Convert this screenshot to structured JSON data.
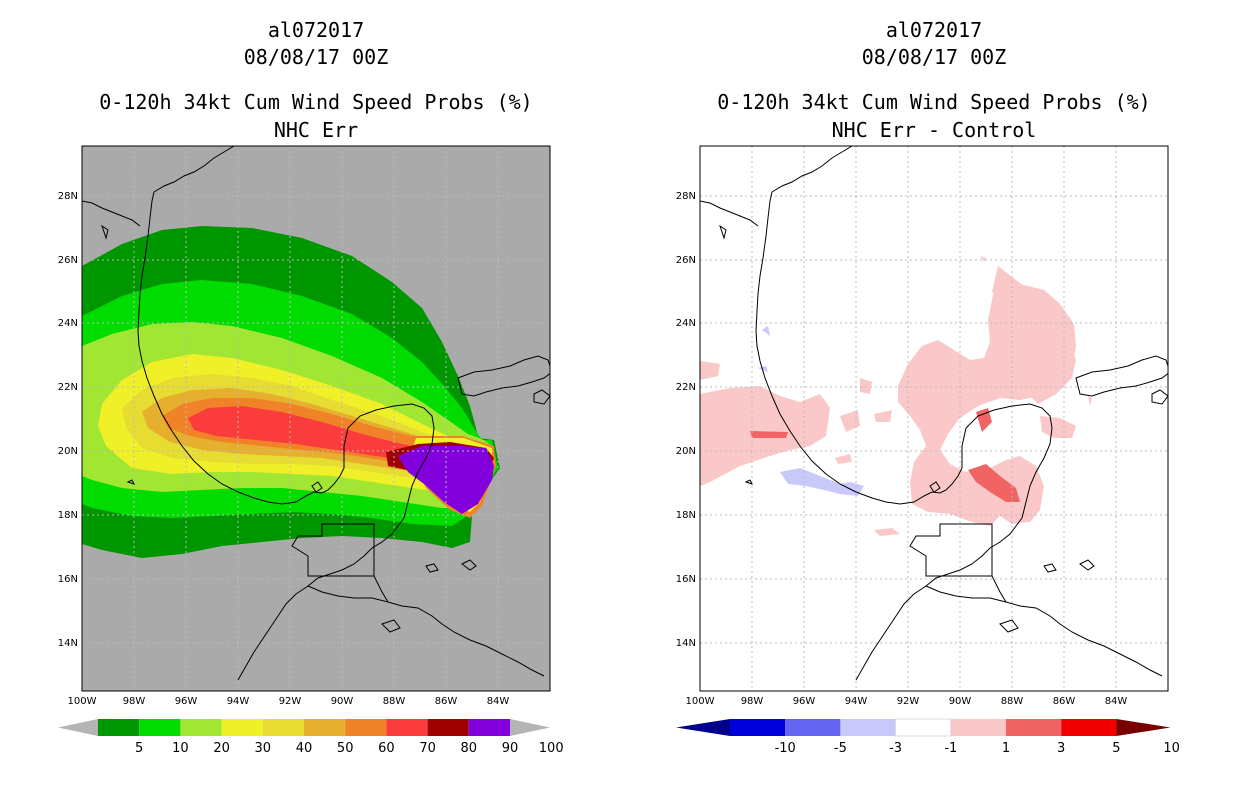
{
  "left_panel": {
    "line1": "al072017",
    "line2": "08/08/17 00Z",
    "line3": "0-120h 34kt Cum Wind Speed Probs (%)",
    "line4": "NHC Err",
    "lat_labels": [
      "28N",
      "26N",
      "24N",
      "22N",
      "20N",
      "18N",
      "16N",
      "14N"
    ],
    "lon_labels": [
      "100W",
      "98W",
      "96W",
      "94W",
      "92W",
      "90W",
      "88W",
      "86W",
      "84W"
    ],
    "colorbar": {
      "colors": [
        "#009600",
        "#00dc00",
        "#a0e632",
        "#f0f028",
        "#e6dc32",
        "#e6af2d",
        "#f08228",
        "#fa3c3c",
        "#a00000",
        "#8200dc"
      ],
      "end_colors": [
        "#b4b4b4",
        "#b4b4b4"
      ],
      "labels": [
        "5",
        "10",
        "20",
        "30",
        "40",
        "50",
        "60",
        "70",
        "80",
        "90",
        "100"
      ]
    }
  },
  "right_panel": {
    "line1": "al072017",
    "line2": "08/08/17 00Z",
    "line3": "0-120h 34kt Cum Wind Speed Probs (%)",
    "line4": "NHC Err - Control",
    "lat_labels": [
      "28N",
      "26N",
      "24N",
      "22N",
      "20N",
      "18N",
      "16N",
      "14N"
    ],
    "lon_labels": [
      "100W",
      "98W",
      "96W",
      "94W",
      "92W",
      "90W",
      "88W",
      "86W",
      "84W"
    ],
    "colorbar": {
      "colors": [
        "#0000dc",
        "#6464f0",
        "#c8c8fa",
        "#ffffff",
        "#fac8c8",
        "#f06464",
        "#f00000"
      ],
      "end_colors": [
        "#00008c",
        "#780000"
      ],
      "labels": [
        "-10",
        "-5",
        "-3",
        "-1",
        "1",
        "3",
        "5",
        "10"
      ]
    }
  },
  "legend_colors": {
    "background_gray": "#aaaaaa",
    "coast": "#000000"
  }
}
